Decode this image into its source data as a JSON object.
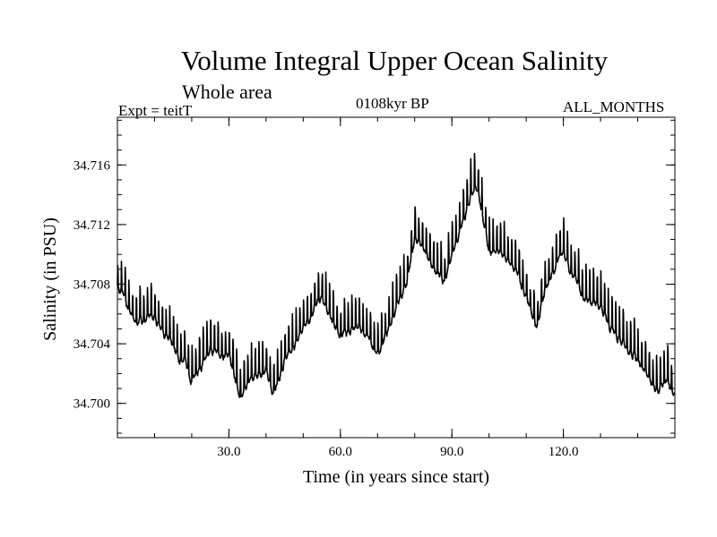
{
  "chart_data": {
    "type": "line",
    "title": "Volume Integral Upper Ocean Salinity",
    "subtitle": "Whole area",
    "left_label": "Expt = teitT",
    "center_label": "0108kyr BP",
    "right_label": "ALL_MONTHS",
    "xlabel": "Time (in years since start)",
    "ylabel": "Salinity (in PSU)",
    "xlim": [
      0,
      150
    ],
    "ylim": [
      34.6977,
      34.7192
    ],
    "x_ticks": [
      30,
      60,
      90,
      120
    ],
    "x_tick_labels": [
      "30.0",
      "60.0",
      "90.0",
      "120.0"
    ],
    "y_ticks": [
      34.7,
      34.704,
      34.708,
      34.712,
      34.716
    ],
    "y_tick_labels": [
      "34.700",
      "34.704",
      "34.708",
      "34.712",
      "34.716"
    ],
    "grid": false,
    "series": [
      {
        "name": "Salinity",
        "x": [
          0,
          5,
          10,
          15,
          20,
          25,
          30,
          33,
          36,
          40,
          42,
          45,
          50,
          55,
          60,
          65,
          70,
          73,
          78,
          80,
          85,
          88,
          92,
          95,
          97,
          100,
          105,
          110,
          113,
          115,
          120,
          125,
          130,
          135,
          140,
          145,
          148,
          150
        ],
        "values": [
          34.708,
          34.7055,
          34.706,
          34.704,
          34.702,
          34.7035,
          34.7035,
          34.7005,
          34.702,
          34.7025,
          34.7005,
          34.703,
          34.705,
          34.7075,
          34.7045,
          34.7055,
          34.7035,
          34.705,
          34.7085,
          34.7115,
          34.7095,
          34.7085,
          34.7115,
          34.714,
          34.7145,
          34.7105,
          34.71,
          34.7075,
          34.705,
          34.7075,
          34.7105,
          34.7075,
          34.7065,
          34.7045,
          34.703,
          34.701,
          34.7015,
          34.7005
        ]
      }
    ]
  }
}
